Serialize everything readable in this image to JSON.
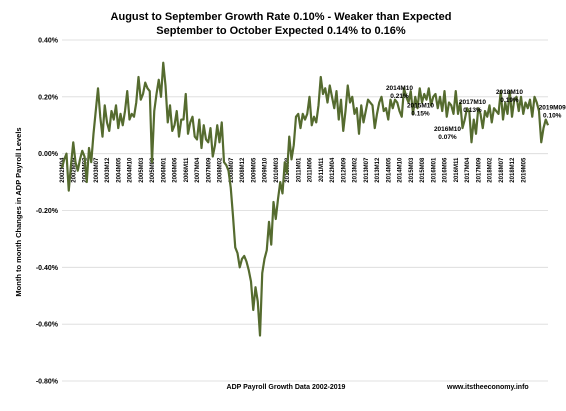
{
  "chart_data": {
    "type": "line",
    "title": "August to September Growth Rate 0.10% - Weaker than Expected",
    "subtitle": "September to October Expected 0.14% to 0.16%",
    "ylabel": "Month to month Changes in ADP Payroll Levels",
    "xlabel": "ADP Payroll Growth Data 2002-2019",
    "source": "www.itstheeconomy.info",
    "ylim": [
      -0.8,
      0.4
    ],
    "y_ticks": [
      "0.40%",
      "0.20%",
      "0.00%",
      "-0.20%",
      "-0.40%",
      "-0.60%",
      "-0.80%"
    ],
    "grid": true,
    "line_color": "#556b2f",
    "start_period": "2002M04",
    "x_tick_labels": [
      "2002M04",
      "2002M09",
      "2003M02",
      "2003M07",
      "2003M12",
      "2004M05",
      "2004M10",
      "2005M03",
      "2005M08",
      "2006M01",
      "2006M06",
      "2006M11",
      "2007M04",
      "2007M09",
      "2008M02",
      "2008M07",
      "2008M12",
      "2009M05",
      "2009M10",
      "2010M03",
      "2010M08",
      "2011M01",
      "2011M06",
      "2011M11",
      "2012M04",
      "2012M09",
      "2013M02",
      "2013M07",
      "2013M12",
      "2014M05",
      "2014M10",
      "2015M03",
      "2015M08",
      "2016M01",
      "2016M06",
      "2016M11",
      "2017M04",
      "2017M09",
      "2018M02",
      "2018M07",
      "2018M12",
      "2019M05"
    ],
    "annotations": [
      {
        "label": "2014M10",
        "value": "0.21%"
      },
      {
        "label": "2015M10",
        "value": "0.15%"
      },
      {
        "label": "2016M10",
        "value": "0.07%"
      },
      {
        "label": "2017M10",
        "value": "0.13%"
      },
      {
        "label": "2018M10",
        "value": "0.19%"
      },
      {
        "label": "2019M09",
        "value": "0.10%"
      }
    ],
    "series": [
      {
        "values": [
          -0.05,
          -0.02,
          0.0,
          -0.13,
          -0.04,
          0.04,
          -0.03,
          -0.06,
          -0.02,
          0.01,
          -0.01,
          -0.1,
          0.02,
          -0.03,
          0.07,
          0.15,
          0.23,
          0.13,
          0.06,
          0.17,
          0.11,
          0.08,
          0.15,
          0.12,
          0.17,
          0.09,
          0.14,
          0.1,
          0.15,
          0.22,
          0.12,
          0.14,
          0.13,
          0.18,
          0.27,
          0.19,
          0.21,
          0.25,
          0.23,
          0.22,
          -0.03,
          0.15,
          0.21,
          0.26,
          0.2,
          0.32,
          0.24,
          0.11,
          0.17,
          0.08,
          0.1,
          0.15,
          0.06,
          0.12,
          0.12,
          0.21,
          0.07,
          0.11,
          0.13,
          0.06,
          0.05,
          0.12,
          0.02,
          0.1,
          0.05,
          0.04,
          0.09,
          -0.01,
          0.03,
          0.1,
          0.04,
          0.11,
          -0.03,
          -0.04,
          -0.06,
          -0.12,
          -0.22,
          -0.33,
          -0.35,
          -0.4,
          -0.37,
          -0.36,
          -0.38,
          -0.41,
          -0.45,
          -0.55,
          -0.47,
          -0.52,
          -0.64,
          -0.42,
          -0.37,
          -0.34,
          -0.24,
          -0.32,
          -0.17,
          -0.23,
          -0.16,
          -0.1,
          -0.14,
          -0.03,
          -0.07,
          0.06,
          -0.02,
          0.03,
          0.13,
          0.14,
          0.09,
          0.14,
          0.12,
          0.14,
          0.2,
          0.1,
          0.13,
          0.11,
          0.17,
          0.27,
          0.21,
          0.23,
          0.18,
          0.24,
          0.2,
          0.16,
          0.22,
          0.12,
          0.19,
          0.08,
          0.15,
          0.24,
          0.18,
          0.2,
          0.14,
          0.16,
          0.07,
          0.17,
          0.11,
          0.15,
          0.19,
          0.18,
          0.17,
          0.09,
          0.14,
          0.18,
          0.2,
          0.15,
          0.16,
          0.12,
          0.19,
          0.16,
          0.19,
          0.18,
          0.15,
          0.13,
          0.23,
          0.2,
          0.18,
          0.22,
          0.14,
          0.2,
          0.16,
          0.23,
          0.18,
          0.21,
          0.19,
          0.23,
          0.17,
          0.2,
          0.21,
          0.16,
          0.2,
          0.15,
          0.22,
          0.13,
          0.18,
          0.17,
          0.14,
          0.22,
          0.14,
          0.18,
          0.09,
          0.12,
          0.16,
          0.15,
          0.04,
          0.12,
          0.07,
          0.16,
          0.14,
          0.09,
          0.15,
          0.13,
          0.17,
          0.11,
          0.16,
          0.15,
          0.14,
          0.22,
          0.12,
          0.18,
          0.14,
          0.22,
          0.13,
          0.19,
          0.2,
          0.15,
          0.2,
          0.14,
          0.18,
          0.16,
          0.19,
          0.13,
          0.2,
          0.18,
          0.15,
          0.04,
          0.09,
          0.12,
          0.1
        ]
      }
    ]
  }
}
